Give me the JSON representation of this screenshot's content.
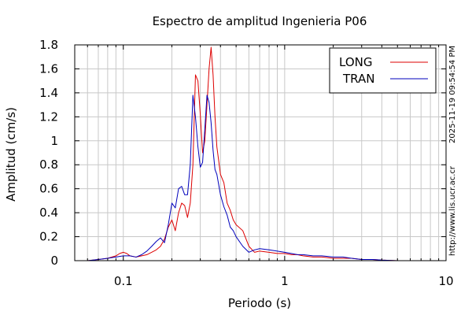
{
  "chart_data": {
    "type": "line",
    "title": "Espectro de amplitud Ingenieria P06",
    "xlabel": "Periodo (s)",
    "ylabel": "Amplitud (cm/s)",
    "x_scale": "log",
    "xlim": [
      0.05,
      10
    ],
    "ylim": [
      0,
      1.8
    ],
    "x_tick_labels": [
      "0.1",
      "1",
      "10"
    ],
    "x_tick_values": [
      0.1,
      1,
      10
    ],
    "y_tick_labels": [
      "0",
      "0.2",
      "0.4",
      "0.6",
      "0.8",
      "1",
      "1.2",
      "1.4",
      "1.6",
      "1.8"
    ],
    "y_tick_values": [
      0,
      0.2,
      0.4,
      0.6,
      0.8,
      1.0,
      1.2,
      1.4,
      1.6,
      1.8
    ],
    "grid": true,
    "legend_position": "top-right",
    "series": [
      {
        "name": "LONG",
        "color": "#dd0000",
        "x": [
          0.06,
          0.07,
          0.08,
          0.09,
          0.095,
          0.1,
          0.105,
          0.11,
          0.12,
          0.13,
          0.14,
          0.15,
          0.16,
          0.17,
          0.18,
          0.19,
          0.2,
          0.21,
          0.22,
          0.23,
          0.24,
          0.25,
          0.26,
          0.27,
          0.28,
          0.29,
          0.3,
          0.31,
          0.32,
          0.33,
          0.34,
          0.35,
          0.36,
          0.37,
          0.38,
          0.4,
          0.42,
          0.44,
          0.46,
          0.48,
          0.5,
          0.55,
          0.6,
          0.65,
          0.7,
          0.8,
          0.9,
          1.0,
          1.1,
          1.2,
          1.3,
          1.5,
          1.7,
          2.0,
          2.3,
          2.6,
          3.0,
          3.5,
          4.0,
          5.0,
          6.0,
          8.0,
          10.0
        ],
        "y": [
          0.0,
          0.01,
          0.02,
          0.04,
          0.06,
          0.07,
          0.06,
          0.04,
          0.03,
          0.04,
          0.05,
          0.07,
          0.09,
          0.12,
          0.18,
          0.28,
          0.34,
          0.25,
          0.4,
          0.48,
          0.46,
          0.36,
          0.48,
          0.8,
          1.55,
          1.5,
          1.22,
          0.9,
          1.0,
          1.3,
          1.6,
          1.78,
          1.55,
          1.2,
          0.95,
          0.72,
          0.65,
          0.48,
          0.42,
          0.34,
          0.3,
          0.25,
          0.12,
          0.07,
          0.08,
          0.07,
          0.06,
          0.06,
          0.05,
          0.05,
          0.04,
          0.03,
          0.03,
          0.02,
          0.02,
          0.02,
          0.01,
          0.01,
          0.005,
          0.0,
          0.0,
          0.0,
          0.0
        ]
      },
      {
        "name": "TRAN",
        "color": "#0000bb",
        "x": [
          0.06,
          0.07,
          0.08,
          0.09,
          0.1,
          0.11,
          0.12,
          0.13,
          0.14,
          0.15,
          0.16,
          0.17,
          0.18,
          0.19,
          0.2,
          0.21,
          0.22,
          0.23,
          0.24,
          0.25,
          0.26,
          0.27,
          0.28,
          0.29,
          0.3,
          0.31,
          0.32,
          0.33,
          0.34,
          0.35,
          0.36,
          0.37,
          0.38,
          0.4,
          0.42,
          0.44,
          0.46,
          0.48,
          0.5,
          0.55,
          0.6,
          0.65,
          0.7,
          0.8,
          0.9,
          1.0,
          1.1,
          1.2,
          1.3,
          1.5,
          1.7,
          2.0,
          2.3,
          2.6,
          3.0,
          3.5,
          4.0,
          5.0,
          6.0,
          8.0,
          10.0
        ],
        "y": [
          0.0,
          0.01,
          0.02,
          0.03,
          0.04,
          0.04,
          0.03,
          0.05,
          0.08,
          0.12,
          0.16,
          0.19,
          0.15,
          0.3,
          0.48,
          0.44,
          0.6,
          0.62,
          0.55,
          0.55,
          0.8,
          1.38,
          1.2,
          0.95,
          0.78,
          0.82,
          1.1,
          1.38,
          1.32,
          1.15,
          0.92,
          0.76,
          0.72,
          0.55,
          0.45,
          0.38,
          0.28,
          0.25,
          0.2,
          0.12,
          0.07,
          0.09,
          0.1,
          0.09,
          0.08,
          0.07,
          0.06,
          0.05,
          0.05,
          0.04,
          0.04,
          0.03,
          0.03,
          0.02,
          0.01,
          0.01,
          0.005,
          0.0,
          0.0,
          0.0,
          0.0
        ]
      }
    ]
  },
  "side_text": {
    "timestamp": "2025-11-19 09:54:54 PM",
    "url": "http://www.lis.ucr.ac.cr"
  }
}
